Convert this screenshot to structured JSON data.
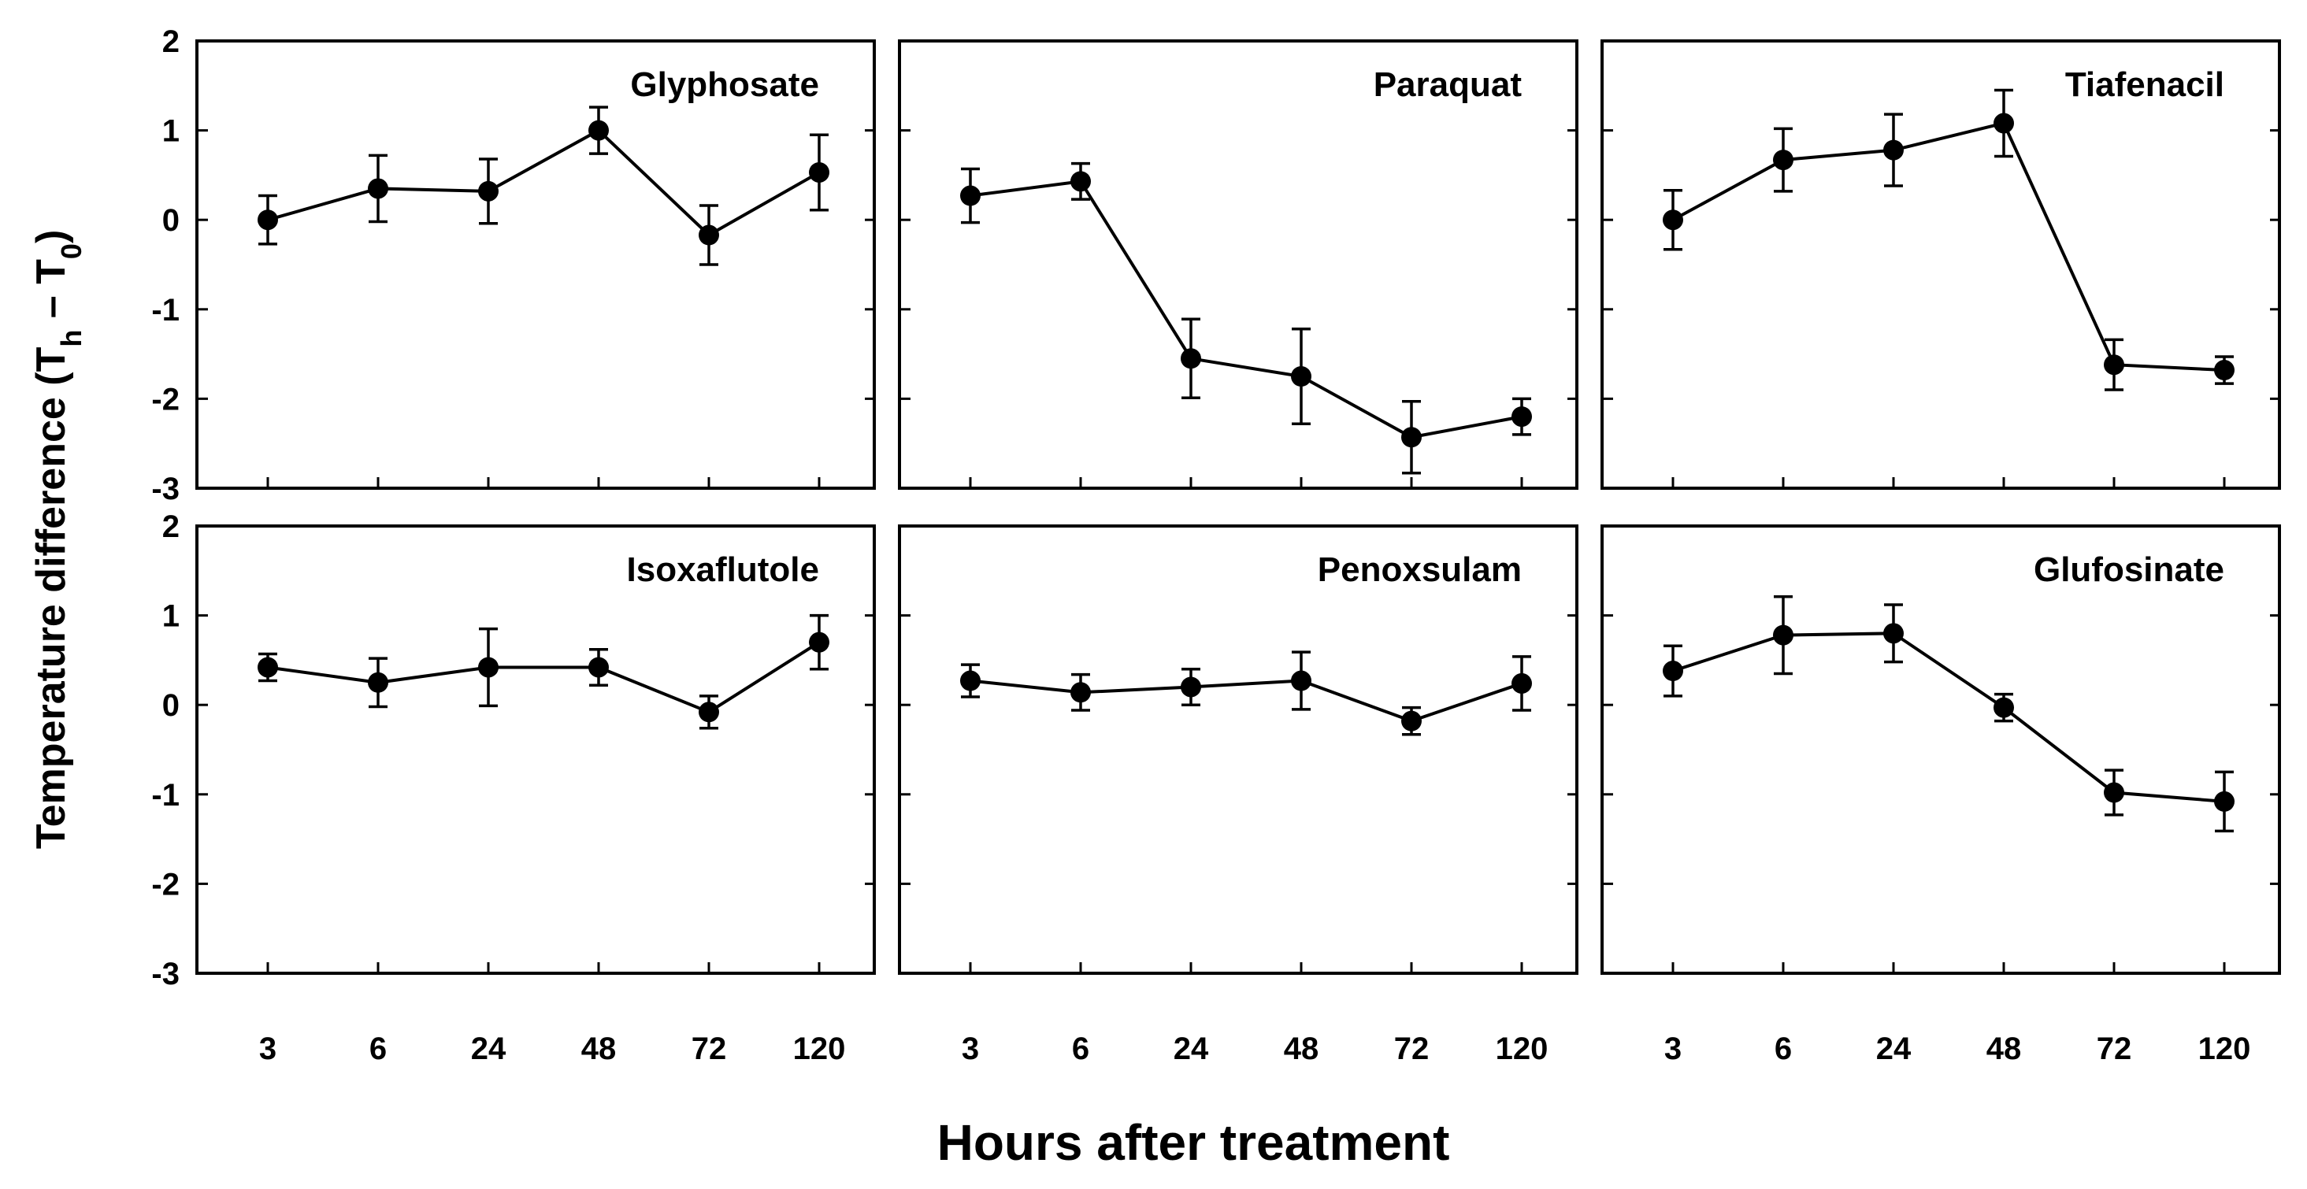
{
  "chart_data": [
    {
      "type": "line",
      "title": "Glyphosate",
      "x": [
        "3",
        "6",
        "24",
        "48",
        "72",
        "120"
      ],
      "values": [
        0.0,
        0.35,
        0.32,
        1.0,
        -0.17,
        0.53
      ],
      "errors": [
        0.27,
        0.37,
        0.36,
        0.26,
        0.33,
        0.42
      ],
      "ylim": [
        -3,
        2
      ],
      "yticks": [
        "2",
        "1",
        "0",
        "-1",
        "-2",
        "-3"
      ]
    },
    {
      "type": "line",
      "title": "Paraquat",
      "x": [
        "3",
        "6",
        "24",
        "48",
        "72",
        "120"
      ],
      "values": [
        0.27,
        0.43,
        -1.55,
        -1.75,
        -2.43,
        -2.2
      ],
      "errors": [
        0.3,
        0.2,
        0.44,
        0.53,
        0.4,
        0.2
      ],
      "ylim": [
        -3,
        2
      ],
      "yticks": [
        "2",
        "1",
        "0",
        "-1",
        "-2",
        "-3"
      ]
    },
    {
      "type": "line",
      "title": "Tiafenacil",
      "x": [
        "3",
        "6",
        "24",
        "48",
        "72",
        "120"
      ],
      "values": [
        0.0,
        0.67,
        0.78,
        1.08,
        -1.62,
        -1.68
      ],
      "errors": [
        0.33,
        0.35,
        0.4,
        0.37,
        0.28,
        0.15
      ],
      "ylim": [
        -3,
        2
      ],
      "yticks": [
        "2",
        "1",
        "0",
        "-1",
        "-2",
        "-3"
      ]
    },
    {
      "type": "line",
      "title": "Isoxaflutole",
      "x": [
        "3",
        "6",
        "24",
        "48",
        "72",
        "120"
      ],
      "values": [
        0.42,
        0.25,
        0.42,
        0.42,
        -0.08,
        0.7
      ],
      "errors": [
        0.15,
        0.27,
        0.43,
        0.2,
        0.18,
        0.3
      ],
      "ylim": [
        -3,
        2
      ],
      "yticks": [
        "2",
        "1",
        "0",
        "-1",
        "-2",
        "-3"
      ]
    },
    {
      "type": "line",
      "title": "Penoxsulam",
      "x": [
        "3",
        "6",
        "24",
        "48",
        "72",
        "120"
      ],
      "values": [
        0.27,
        0.14,
        0.2,
        0.27,
        -0.18,
        0.24
      ],
      "errors": [
        0.18,
        0.2,
        0.2,
        0.32,
        0.15,
        0.3
      ],
      "ylim": [
        -3,
        2
      ],
      "yticks": [
        "2",
        "1",
        "0",
        "-1",
        "-2",
        "-3"
      ]
    },
    {
      "type": "line",
      "title": "Glufosinate",
      "x": [
        "3",
        "6",
        "24",
        "48",
        "72",
        "120"
      ],
      "values": [
        0.38,
        0.78,
        0.8,
        -0.03,
        -0.98,
        -1.08
      ],
      "errors": [
        0.28,
        0.43,
        0.32,
        0.15,
        0.25,
        0.33
      ],
      "ylim": [
        -3,
        2
      ],
      "yticks": [
        "2",
        "1",
        "0",
        "-1",
        "-2",
        "-3"
      ]
    }
  ],
  "xlabel": "Hours after treatment",
  "ylabel": {
    "main": "Temperature difference (T",
    "sub1": "h",
    "dash": " – T",
    "sub2": "0",
    "close": ")"
  },
  "colors": {
    "ink": "#000000",
    "background": "#ffffff"
  }
}
